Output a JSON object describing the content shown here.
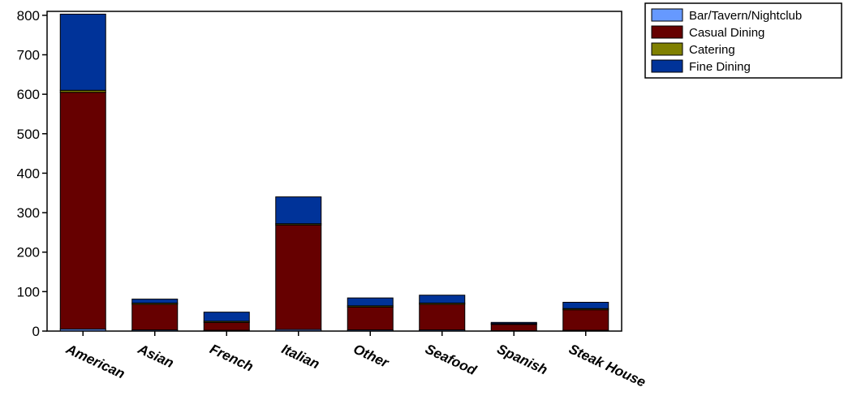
{
  "chart_data": {
    "type": "bar",
    "stacked": true,
    "title": "",
    "xlabel": "",
    "ylabel": "",
    "ylim": [
      0,
      810
    ],
    "yticks": [
      0,
      100,
      200,
      300,
      400,
      500,
      600,
      700,
      800
    ],
    "categories": [
      "American",
      "Asian",
      "French",
      "Italian",
      "Other",
      "Seafood",
      "Spanish",
      "Steak House"
    ],
    "series": [
      {
        "name": "Bar/Tavern/Nightclub",
        "color": "#6699ff",
        "values": [
          5,
          3,
          2,
          4,
          3,
          3,
          1,
          2
        ]
      },
      {
        "name": "Casual Dining",
        "color": "#660000",
        "values": [
          600,
          65,
          20,
          265,
          58,
          65,
          16,
          52
        ]
      },
      {
        "name": "Catering",
        "color": "#808000",
        "values": [
          5,
          3,
          3,
          3,
          3,
          3,
          2,
          3
        ]
      },
      {
        "name": "Fine Dining",
        "color": "#003399",
        "values": [
          193,
          10,
          23,
          68,
          20,
          20,
          3,
          16
        ]
      }
    ],
    "legend_position": "top-right",
    "grid": false
  }
}
